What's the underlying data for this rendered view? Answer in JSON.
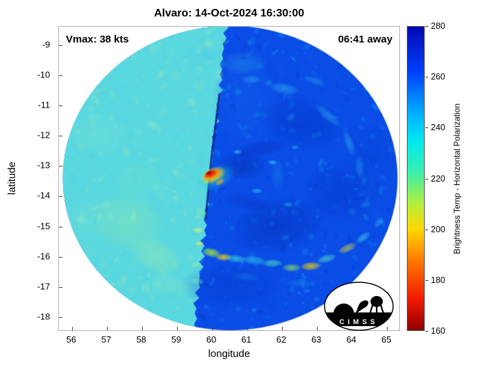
{
  "title": "Alvaro: 14-Oct-2024 16:30:00",
  "annotations": {
    "vmax": "Vmax: 38 kts",
    "eta": "06:41 away"
  },
  "axes": {
    "xlabel": "longitude",
    "ylabel": "latitude",
    "x_ticks": [
      56,
      57,
      58,
      59,
      60,
      61,
      62,
      63,
      64,
      65
    ],
    "y_ticks": [
      -9,
      -10,
      -11,
      -12,
      -13,
      -14,
      -15,
      -16,
      -17,
      -18
    ],
    "x_range": [
      55.63,
      65.39
    ],
    "y_range": [
      -18.48,
      -8.39
    ]
  },
  "colorbar": {
    "label": "Brightness Temp - Horizontal Polarization",
    "min": 160,
    "max": 280,
    "ticks": [
      280,
      260,
      240,
      220,
      200,
      180,
      160
    ],
    "stops": [
      {
        "v": 280,
        "c": "#0008b0"
      },
      {
        "v": 262,
        "c": "#0040ff"
      },
      {
        "v": 245,
        "c": "#00b4ff"
      },
      {
        "v": 235,
        "c": "#00e8f0"
      },
      {
        "v": 222,
        "c": "#3cf0a8"
      },
      {
        "v": 210,
        "c": "#b4f03c"
      },
      {
        "v": 200,
        "c": "#ffd800"
      },
      {
        "v": 188,
        "c": "#ff7c00"
      },
      {
        "v": 172,
        "c": "#f01800"
      },
      {
        "v": 160,
        "c": "#900000"
      }
    ]
  },
  "logo": {
    "text": "CIMSS"
  },
  "chart_data": {
    "type": "heatmap",
    "title": "Alvaro: 14-Oct-2024 16:30:00",
    "storm_name": "Alvaro",
    "vmax_kts": 38,
    "time_offset": "06:41 away",
    "xlabel": "longitude",
    "ylabel": "latitude",
    "xlim": [
      55.63,
      65.39
    ],
    "ylim": [
      -18.48,
      -8.39
    ],
    "colorbar_label": "Brightness Temp - Horizontal Polarization",
    "colorbar_range": [
      160,
      280
    ],
    "description": "Circular microwave brightness-temperature swath over tropical cyclone Alvaro. Left third of the disk is a lighter cyan (~235-245 K) swath; right portion is deep blue (~255-265 K) with cyan speckles, spiral rainband arcs of green/yellow (~200-225 K) along the south, and an intense deep-convection hotspot (~160-190 K, red/orange/yellow) near 60.0E, -13.3S at the swath boundary.",
    "swath": {
      "center_lon": 60.54,
      "center_lat": -13.42,
      "radius_lon": 4.8,
      "radius_lat": 5.06,
      "right_color": "#0a4ce6",
      "left_color": "#5ad8e0",
      "boundary_top_lon": 60.45,
      "boundary_bottom_lon": 59.48,
      "edge_color": "#0a2490",
      "edge_lat_range": [
        -10.6,
        -14.8
      ]
    },
    "features_under": [
      {
        "lon": 61.0,
        "lat": -10.9,
        "rx": 1.0,
        "ry": 1.6,
        "rot": 0,
        "color": "#1260ec",
        "alpha": 0.5
      },
      {
        "lon": 62.6,
        "lat": -11.6,
        "rx": 1.3,
        "ry": 0.9,
        "rot": 15,
        "color": "#0334c4",
        "alpha": 0.45
      },
      {
        "lon": 63.7,
        "lat": -13.9,
        "rx": 1.1,
        "ry": 1.0,
        "rot": 0,
        "color": "#0334c4",
        "alpha": 0.4
      },
      {
        "lon": 61.9,
        "lat": -15.0,
        "rx": 1.4,
        "ry": 0.9,
        "rot": -10,
        "color": "#042cb4",
        "alpha": 0.45
      },
      {
        "lon": 60.6,
        "lat": -17.0,
        "rx": 1.5,
        "ry": 0.8,
        "rot": 0,
        "color": "#0538c8",
        "alpha": 0.4
      },
      {
        "lon": 64.6,
        "lat": -12.6,
        "rx": 0.8,
        "ry": 1.0,
        "rot": 0,
        "color": "#0440d0",
        "alpha": 0.35
      },
      {
        "lon": 60.9,
        "lat": -13.0,
        "rx": 0.7,
        "ry": 0.5,
        "rot": 0,
        "color": "#0630b0",
        "alpha": 0.5
      },
      {
        "lon": 57.6,
        "lat": -14.9,
        "rx": 1.1,
        "ry": 1.0,
        "rot": 15,
        "color": "#86e6b4",
        "alpha": 0.5
      },
      {
        "lon": 58.4,
        "lat": -16.0,
        "rx": 0.8,
        "ry": 0.6,
        "rot": 25,
        "color": "#9ceaac",
        "alpha": 0.45
      },
      {
        "lon": 57.9,
        "lat": -13.5,
        "rx": 0.8,
        "ry": 0.7,
        "rot": 0,
        "color": "#6ee0cc",
        "alpha": 0.4
      },
      {
        "lon": 56.8,
        "lat": -12.0,
        "rx": 0.9,
        "ry": 0.8,
        "rot": 0,
        "color": "#7ce2d6",
        "alpha": 0.35
      },
      {
        "lon": 57.3,
        "lat": -10.7,
        "rx": 0.7,
        "ry": 0.6,
        "rot": 0,
        "color": "#54d6e4",
        "alpha": 0.35
      },
      {
        "lon": 56.5,
        "lat": -14.8,
        "rx": 0.7,
        "ry": 0.8,
        "rot": 0,
        "color": "#74e0d2",
        "alpha": 0.35
      },
      {
        "lon": 58.8,
        "lat": -17.0,
        "rx": 0.7,
        "ry": 0.4,
        "rot": 15,
        "color": "#80e6c4",
        "alpha": 0.4
      },
      {
        "lon": 59.7,
        "lat": -9.4,
        "rx": 0.6,
        "ry": 0.4,
        "rot": 0,
        "color": "#4ccce8",
        "alpha": 0.4
      },
      {
        "lon": 60.9,
        "lat": -9.6,
        "rx": 0.7,
        "ry": 0.4,
        "rot": 0,
        "color": "#2fa8e8",
        "alpha": 0.35
      }
    ],
    "features": [
      {
        "lon": 60.12,
        "lat": -13.42,
        "rx": 0.62,
        "ry": 0.4,
        "rot": -25,
        "color": "#20c8e0",
        "alpha": 0.55
      },
      {
        "lon": 60.05,
        "lat": -13.33,
        "rx": 0.4,
        "ry": 0.26,
        "rot": -25,
        "color": "#ffe000",
        "alpha": 0.95
      },
      {
        "lon": 60.02,
        "lat": -13.3,
        "rx": 0.3,
        "ry": 0.18,
        "rot": -25,
        "color": "#ff7800",
        "alpha": 0.95
      },
      {
        "lon": 59.98,
        "lat": -13.28,
        "rx": 0.22,
        "ry": 0.13,
        "rot": -25,
        "color": "#ee1000",
        "alpha": 1
      },
      {
        "lon": 59.93,
        "lat": -13.25,
        "rx": 0.11,
        "ry": 0.07,
        "rot": -25,
        "color": "#8e0000",
        "alpha": 1
      },
      {
        "lon": 60.25,
        "lat": -13.55,
        "rx": 0.16,
        "ry": 0.09,
        "rot": -30,
        "color": "#ffb000",
        "alpha": 0.8
      },
      {
        "lon": 59.75,
        "lat": -14.6,
        "rx": 0.14,
        "ry": 0.1,
        "rot": 0,
        "color": "#49e0d0",
        "alpha": 0.8
      },
      {
        "lon": 59.62,
        "lat": -15.15,
        "rx": 0.16,
        "ry": 0.1,
        "rot": 0,
        "color": "#c8f088",
        "alpha": 0.85
      },
      {
        "lon": 59.66,
        "lat": -15.6,
        "rx": 0.14,
        "ry": 0.09,
        "rot": 0,
        "color": "#d8ee6a",
        "alpha": 0.8
      },
      {
        "lon": 59.55,
        "lat": -16.3,
        "rx": 0.16,
        "ry": 0.1,
        "rot": 0,
        "color": "#90e8a8",
        "alpha": 0.7
      },
      {
        "lon": 59.6,
        "lat": -16.85,
        "rx": 0.2,
        "ry": 0.12,
        "rot": 10,
        "color": "#68e0c0",
        "alpha": 0.6
      },
      {
        "lon": 60.0,
        "lat": -15.9,
        "rx": 0.28,
        "ry": 0.16,
        "rot": 10,
        "color": "#a8ec40",
        "alpha": 0.85
      },
      {
        "lon": 60.35,
        "lat": -16.05,
        "rx": 0.24,
        "ry": 0.13,
        "rot": 0,
        "color": "#ffd800",
        "alpha": 0.8
      },
      {
        "lon": 60.7,
        "lat": -16.1,
        "rx": 0.3,
        "ry": 0.14,
        "rot": 5,
        "color": "#38d8e0",
        "alpha": 0.7
      },
      {
        "lon": 61.2,
        "lat": -16.15,
        "rx": 0.35,
        "ry": 0.15,
        "rot": 5,
        "color": "#2cc8ec",
        "alpha": 0.65
      },
      {
        "lon": 61.75,
        "lat": -16.25,
        "rx": 0.3,
        "ry": 0.14,
        "rot": 0,
        "color": "#44e0b4",
        "alpha": 0.7
      },
      {
        "lon": 62.3,
        "lat": -16.4,
        "rx": 0.28,
        "ry": 0.14,
        "rot": 0,
        "color": "#8ce858",
        "alpha": 0.7
      },
      {
        "lon": 62.85,
        "lat": -16.35,
        "rx": 0.3,
        "ry": 0.15,
        "rot": -5,
        "color": "#ffd400",
        "alpha": 0.75
      },
      {
        "lon": 63.3,
        "lat": -16.1,
        "rx": 0.3,
        "ry": 0.14,
        "rot": -15,
        "color": "#54e0c8",
        "alpha": 0.65
      },
      {
        "lon": 63.9,
        "lat": -15.75,
        "rx": 0.3,
        "ry": 0.14,
        "rot": -25,
        "color": "#f0e030",
        "alpha": 0.6
      },
      {
        "lon": 64.35,
        "lat": -15.4,
        "rx": 0.26,
        "ry": 0.13,
        "rot": -35,
        "color": "#3ed4e8",
        "alpha": 0.6
      },
      {
        "lon": 64.8,
        "lat": -14.9,
        "rx": 0.2,
        "ry": 0.12,
        "rot": -50,
        "color": "#2cb8ec",
        "alpha": 0.5
      },
      {
        "lon": 61.0,
        "lat": -16.7,
        "rx": 0.4,
        "ry": 0.15,
        "rot": 5,
        "color": "#1880e8",
        "alpha": 0.4
      },
      {
        "lon": 62.5,
        "lat": -16.9,
        "rx": 0.4,
        "ry": 0.14,
        "rot": 0,
        "color": "#1f90e8",
        "alpha": 0.35
      },
      {
        "lon": 63.35,
        "lat": -11.35,
        "rx": 0.5,
        "ry": 0.16,
        "rot": 40,
        "color": "#28a4f0",
        "alpha": 0.55
      },
      {
        "lon": 63.95,
        "lat": -12.25,
        "rx": 0.42,
        "ry": 0.15,
        "rot": 70,
        "color": "#30b0f0",
        "alpha": 0.5
      },
      {
        "lon": 64.25,
        "lat": -13.05,
        "rx": 0.36,
        "ry": 0.14,
        "rot": 85,
        "color": "#2498e8",
        "alpha": 0.5
      },
      {
        "lon": 62.1,
        "lat": -10.45,
        "rx": 0.45,
        "ry": 0.2,
        "rot": 10,
        "color": "#30b4f0",
        "alpha": 0.5
      },
      {
        "lon": 61.15,
        "lat": -10.15,
        "rx": 0.3,
        "ry": 0.15,
        "rot": 0,
        "color": "#3cc0f0",
        "alpha": 0.4
      },
      {
        "lon": 63.0,
        "lat": -10.2,
        "rx": 0.3,
        "ry": 0.14,
        "rot": 20,
        "color": "#2ca8ee",
        "alpha": 0.4
      },
      {
        "lon": 61.4,
        "lat": -12.45,
        "rx": 0.8,
        "ry": 0.28,
        "rot": -12,
        "color": "#0a34c4",
        "alpha": 0.55
      },
      {
        "lon": 61.1,
        "lat": -14.25,
        "rx": 0.75,
        "ry": 0.25,
        "rot": 12,
        "color": "#0a34c4",
        "alpha": 0.45
      },
      {
        "lon": 61.9,
        "lat": -13.3,
        "rx": 0.2,
        "ry": 0.55,
        "rot": 0,
        "color": "#1a8ce4",
        "alpha": 0.4
      },
      {
        "lon": 61.75,
        "lat": -12.9,
        "rx": 0.14,
        "ry": 0.09,
        "rot": 0,
        "color": "#34ccf0",
        "alpha": 0.7
      },
      {
        "lon": 61.3,
        "lat": -13.85,
        "rx": 0.16,
        "ry": 0.09,
        "rot": 0,
        "color": "#3cd4f0",
        "alpha": 0.6
      },
      {
        "lon": 60.75,
        "lat": -12.55,
        "rx": 0.13,
        "ry": 0.08,
        "rot": 0,
        "color": "#44d8f0",
        "alpha": 0.6
      },
      {
        "lon": 62.4,
        "lat": -12.4,
        "rx": 0.12,
        "ry": 0.08,
        "rot": 0,
        "color": "#30c4f0",
        "alpha": 0.5
      },
      {
        "lon": 62.2,
        "lat": -14.3,
        "rx": 0.15,
        "ry": 0.09,
        "rot": 0,
        "color": "#2cc0f0",
        "alpha": 0.5
      }
    ],
    "noise": {
      "right": {
        "count": 520,
        "palette": [
          "#0030b4",
          "#084ae4",
          "#0a64f0",
          "#0b9cf0",
          "#19c2f0"
        ],
        "alpha_min": 0.12,
        "alpha_max": 0.35,
        "r_max": 7
      },
      "left": {
        "count": 300,
        "palette": [
          "#46ccd8",
          "#60dcd0",
          "#7ee6c0",
          "#9eecb0",
          "#b8f0a4"
        ],
        "alpha_min": 0.12,
        "alpha_max": 0.32,
        "r_max": 9
      }
    }
  }
}
